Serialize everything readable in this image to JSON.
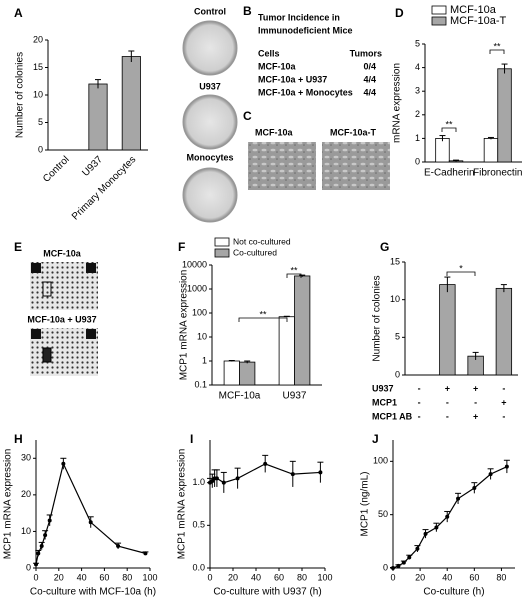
{
  "chart_data": [
    {
      "panel": "A",
      "type": "bar",
      "categories": [
        "Control",
        "U937",
        "Primary Monocytes"
      ],
      "values": [
        0,
        12,
        17
      ],
      "errors": [
        0,
        0.8,
        1
      ],
      "color": "#a6a6a6",
      "ylabel": "Number of colonies",
      "ylim": [
        0,
        20
      ],
      "yticks": [
        0,
        5,
        10,
        15,
        20
      ]
    },
    {
      "panel": "D",
      "type": "bar",
      "categories": [
        "E-Cadherin",
        "Fibronectin"
      ],
      "series": [
        {
          "name": "MCF-10a",
          "color": "#ffffff",
          "values": [
            1,
            1
          ],
          "errors": [
            0.12,
            0.04
          ]
        },
        {
          "name": "MCF-10a-T",
          "color": "#a6a6a6",
          "values": [
            0.05,
            3.95
          ],
          "errors": [
            0.03,
            0.2
          ]
        }
      ],
      "ylabel": "mRNA expression",
      "ylim": [
        0,
        5
      ],
      "yticks": [
        0,
        1,
        2,
        3,
        4,
        5
      ],
      "legend": "top",
      "annotations": [
        "**",
        "**"
      ]
    },
    {
      "panel": "F",
      "type": "bar",
      "log": true,
      "categories": [
        "MCF-10a",
        "U937"
      ],
      "series": [
        {
          "name": "Not co-cultured",
          "color": "#ffffff",
          "values": [
            1,
            70
          ],
          "errors": [
            0.05,
            3
          ]
        },
        {
          "name": "Co-cultured",
          "color": "#a6a6a6",
          "values": [
            0.9,
            3500
          ],
          "errors": [
            0.1,
            300
          ]
        }
      ],
      "ylabel": "MCP1 mRNA expression",
      "ylim": [
        0.1,
        10000
      ],
      "yticks": [
        0.1,
        1,
        10,
        100,
        1000,
        10000
      ],
      "legend": "top",
      "annotations": [
        "**",
        "**"
      ]
    },
    {
      "panel": "G",
      "type": "bar",
      "values": [
        0,
        12,
        2.5,
        11.5
      ],
      "errors": [
        0,
        1,
        0.5,
        0.5
      ],
      "color": "#a6a6a6",
      "ylabel": "Number of colonies",
      "ylim": [
        0,
        15
      ],
      "yticks": [
        0,
        5,
        10,
        15
      ],
      "conditions": [
        {
          "name": "U937",
          "marks": [
            "-",
            "+",
            "+",
            "-"
          ]
        },
        {
          "name": "MCP1",
          "marks": [
            "-",
            "-",
            "-",
            "+"
          ]
        },
        {
          "name": "MCP1 AB",
          "marks": [
            "-",
            "-",
            "+",
            "-"
          ]
        }
      ],
      "annotations": [
        "*"
      ]
    },
    {
      "panel": "H",
      "type": "line",
      "x": [
        0,
        2,
        5,
        8,
        12,
        24,
        48,
        72,
        96
      ],
      "values": [
        1,
        4,
        6,
        9,
        13,
        28.5,
        12.5,
        6,
        4
      ],
      "errors": [
        0.3,
        0.8,
        1,
        1.2,
        1.5,
        1.5,
        1.5,
        0.8,
        0.4
      ],
      "color": "#000000",
      "xlabel": "Co-culture with MCF-10a (h)",
      "ylabel": "MCP1 mRNA expression",
      "xlim": [
        0,
        100
      ],
      "xticks": [
        0,
        20,
        40,
        60,
        80,
        100
      ],
      "ylim": [
        0,
        35
      ],
      "yticks": [
        0,
        10,
        20,
        30
      ]
    },
    {
      "panel": "I",
      "type": "line",
      "x": [
        0,
        2,
        4,
        6,
        12,
        24,
        48,
        72,
        96
      ],
      "values": [
        1,
        1.02,
        1.05,
        1.05,
        1.0,
        1.05,
        1.22,
        1.1,
        1.12
      ],
      "errors": [
        0.05,
        0.08,
        0.1,
        0.1,
        0.12,
        0.12,
        0.1,
        0.15,
        0.12
      ],
      "color": "#000000",
      "xlabel": "Co-culture with U937 (h)",
      "ylabel": "MCP1 mRNA expression",
      "xlim": [
        0,
        100
      ],
      "xticks": [
        0,
        20,
        40,
        60,
        80,
        100
      ],
      "ylim": [
        0,
        1.5
      ],
      "yticks": [
        {
          "value": 0,
          "label": "0.0"
        },
        {
          "value": 0.5,
          "label": "0.5"
        },
        {
          "value": 1,
          "label": "1.0"
        }
      ]
    },
    {
      "panel": "J",
      "type": "line",
      "x": [
        0,
        4,
        8,
        12,
        18,
        24,
        32,
        40,
        48,
        60,
        72,
        84
      ],
      "values": [
        0,
        2,
        5,
        10,
        18,
        32,
        38,
        48,
        65,
        75,
        88,
        95
      ],
      "errors": [
        0.5,
        1,
        1.5,
        2,
        3,
        4,
        4,
        5,
        5,
        5,
        5,
        6
      ],
      "color": "#000000",
      "xlabel": "Co-culture (h)",
      "ylabel": "MCP1 (ng/mL)",
      "xlim": [
        0,
        90
      ],
      "xticks": [
        0,
        20,
        40,
        60,
        80
      ],
      "ylim": [
        0,
        120
      ],
      "yticks": [
        0,
        50,
        100
      ]
    }
  ],
  "table": {
    "panel": "B",
    "title": [
      "Tumor Incidence in",
      "Immunodeficient Mice"
    ],
    "header": [
      "Cells",
      "Tumors"
    ],
    "rows": [
      [
        "MCF-10a",
        "0/4"
      ],
      [
        "MCF-10a + U937",
        "4/4"
      ],
      [
        "MCF-10a + Monocytes",
        "4/4"
      ]
    ]
  },
  "dishes": {
    "captions": [
      "Control",
      "U937",
      "Monocytes"
    ]
  },
  "micrographs": {
    "panel": "C",
    "captions": [
      "MCF-10a",
      "MCF-10a-T"
    ]
  },
  "arrays": {
    "panel": "E",
    "captions": [
      "MCF-10a",
      "MCF-10a + U937"
    ]
  }
}
